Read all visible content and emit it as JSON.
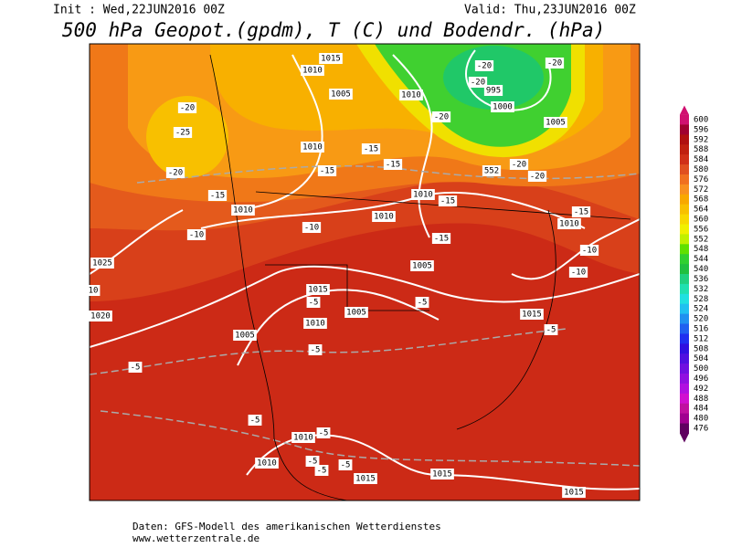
{
  "header": {
    "init": "Init : Wed,22JUN2016 00Z",
    "valid": "Valid: Thu,23JUN2016 00Z",
    "title": "500 hPa Geopot.(gpdm), T (C) und Bodendr. (hPa)"
  },
  "colorbar": [
    {
      "value": 600,
      "color": "#d01070"
    },
    {
      "value": 596,
      "color": "#a00030"
    },
    {
      "value": 592,
      "color": "#b01010"
    },
    {
      "value": 588,
      "color": "#c02010"
    },
    {
      "value": 584,
      "color": "#d03018"
    },
    {
      "value": 580,
      "color": "#e05020"
    },
    {
      "value": 576,
      "color": "#f07020"
    },
    {
      "value": 572,
      "color": "#f89020"
    },
    {
      "value": 568,
      "color": "#f8a800"
    },
    {
      "value": 564,
      "color": "#f8c000"
    },
    {
      "value": 560,
      "color": "#f8d800"
    },
    {
      "value": 556,
      "color": "#f0f000"
    },
    {
      "value": 552,
      "color": "#c0f000"
    },
    {
      "value": 548,
      "color": "#60e000"
    },
    {
      "value": 544,
      "color": "#30d030"
    },
    {
      "value": 540,
      "color": "#20c040"
    },
    {
      "value": 536,
      "color": "#20d080"
    },
    {
      "value": 532,
      "color": "#20e0b0"
    },
    {
      "value": 528,
      "color": "#20e0e0"
    },
    {
      "value": 524,
      "color": "#20c0f0"
    },
    {
      "value": 520,
      "color": "#2090f0"
    },
    {
      "value": 516,
      "color": "#2060f0"
    },
    {
      "value": 512,
      "color": "#2030f0"
    },
    {
      "value": 508,
      "color": "#3010e0"
    },
    {
      "value": 504,
      "color": "#5010e0"
    },
    {
      "value": 500,
      "color": "#7010e0"
    },
    {
      "value": 496,
      "color": "#9010e0"
    },
    {
      "value": 492,
      "color": "#b010e0"
    },
    {
      "value": 488,
      "color": "#d010d0"
    },
    {
      "value": 484,
      "color": "#c010a0"
    },
    {
      "value": 480,
      "color": "#a00090"
    },
    {
      "value": 476,
      "color": "#600060"
    }
  ],
  "map": {
    "labels": [
      "1015",
      "1010",
      "1005",
      "1010",
      "995",
      "1000",
      "1005",
      "-20",
      "-20",
      "-20",
      "-20",
      "-20",
      "-25",
      "-20",
      "-15",
      "-15",
      "-15",
      "-15",
      "-20",
      "-20",
      "552",
      "1010",
      "1010",
      "1010",
      "1010",
      "-15",
      "-10",
      "-10",
      "-15",
      "-15",
      "1010",
      "-10",
      "-10",
      "1025",
      "10",
      "1020",
      "1005",
      "1015",
      "-5",
      "1010",
      "1005",
      "-5",
      "1015",
      "-5",
      "1005",
      "-5",
      "-5",
      "-5",
      "1010",
      "-5",
      "-5",
      "-5",
      "-5",
      "1010",
      "1015",
      "1015",
      "1015"
    ]
  },
  "footer": {
    "lines": [
      "Daten: GFS-Modell des amerikanischen Wetterdienstes",
      "www.wetterzentrale.de"
    ]
  }
}
